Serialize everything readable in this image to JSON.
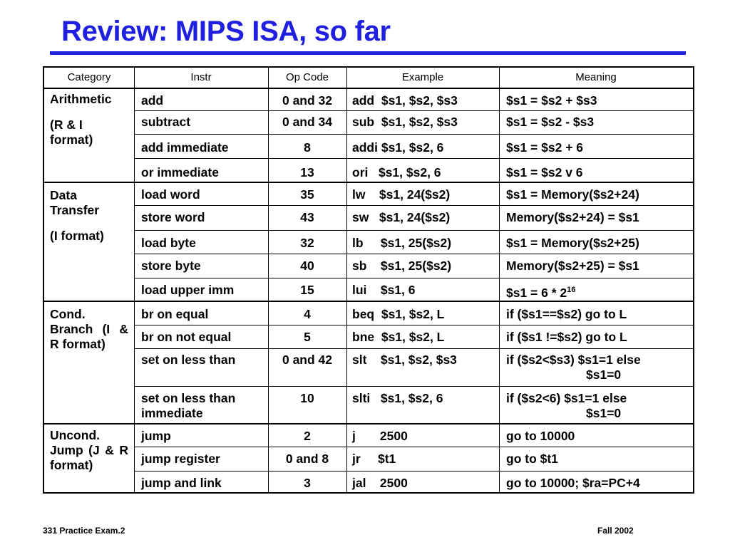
{
  "slide": {
    "title": "Review:  MIPS ISA, so far",
    "footer_left": "331  Practice Exam.2",
    "footer_right": "Fall 2002",
    "accent_color": "#1f1fe0"
  },
  "table": {
    "headers": [
      "Category",
      "Instr",
      "Op Code",
      "Example",
      "Meaning"
    ],
    "categories": [
      {
        "name": "arithmetic",
        "lines": [
          "Arithmetic",
          "(R & I format)"
        ]
      },
      {
        "name": "data-transfer",
        "lines": [
          "Data Transfer",
          "(I format)"
        ]
      },
      {
        "name": "cond-branch",
        "lines": [
          "Cond. Branch    (I & R format)"
        ]
      },
      {
        "name": "uncond-jump",
        "lines": [
          "Uncond. Jump     (J & R format)"
        ]
      }
    ],
    "rows": [
      {
        "instr": "add",
        "opcode": "0 and 32",
        "example": "add  $s1, $s2, $s3",
        "meaning": "$s1 = $s2 + $s3"
      },
      {
        "instr": "subtract",
        "opcode": "0 and 34",
        "example": "sub  $s1, $s2, $s3",
        "meaning": "$s1 = $s2 - $s3"
      },
      {
        "instr": "add immediate",
        "opcode": "8",
        "example": "addi $s1, $s2, 6",
        "meaning": "$s1 = $s2 + 6"
      },
      {
        "instr": "or immediate",
        "opcode": "13",
        "example": "ori   $s1, $s2, 6",
        "meaning": "$s1 = $s2 v 6"
      },
      {
        "instr": "load word",
        "opcode": "35",
        "example": "lw    $s1, 24($s2)",
        "meaning": "$s1 = Memory($s2+24)"
      },
      {
        "instr": "store word",
        "opcode": "43",
        "example": "sw   $s1, 24($s2)",
        "meaning": "Memory($s2+24) = $s1"
      },
      {
        "instr": "load byte",
        "opcode": "32",
        "example": "lb     $s1, 25($s2)",
        "meaning": "$s1 = Memory($s2+25)"
      },
      {
        "instr": "store byte",
        "opcode": "40",
        "example": "sb    $s1, 25($s2)",
        "meaning": "Memory($s2+25) = $s1"
      },
      {
        "instr": "load upper imm",
        "opcode": "15",
        "example": "lui    $s1, 6",
        "meaning": "$s1 = 6 * 2",
        "meaning_sup": "16"
      },
      {
        "instr": "br on equal",
        "opcode": "4",
        "example": "beq  $s1, $s2, L",
        "meaning": "if ($s1==$s2) go to L"
      },
      {
        "instr": "br on not equal",
        "opcode": "5",
        "example": "bne  $s1, $s2, L",
        "meaning": "if ($s1 !=$s2) go to L"
      },
      {
        "instr": "set on less than",
        "opcode": "0 and 42",
        "example": "slt    $s1, $s2, $s3",
        "meaning": "if ($s2<$s3) $s1=1 else",
        "meaning_2": "$s1=0"
      },
      {
        "instr": "set on less than immediate",
        "opcode": "10",
        "example": "slti   $s1, $s2, 6",
        "meaning": "if ($s2<6) $s1=1 else",
        "meaning_2": "$s1=0"
      },
      {
        "instr": "jump",
        "opcode": "2",
        "example": "j       2500",
        "meaning": "go to 10000"
      },
      {
        "instr": "jump register",
        "opcode": "0 and 8",
        "example": "jr     $t1",
        "meaning": "go to $t1"
      },
      {
        "instr": "jump and link",
        "opcode": "3",
        "example": "jal    2500",
        "meaning": "go to 10000; $ra=PC+4"
      }
    ]
  }
}
